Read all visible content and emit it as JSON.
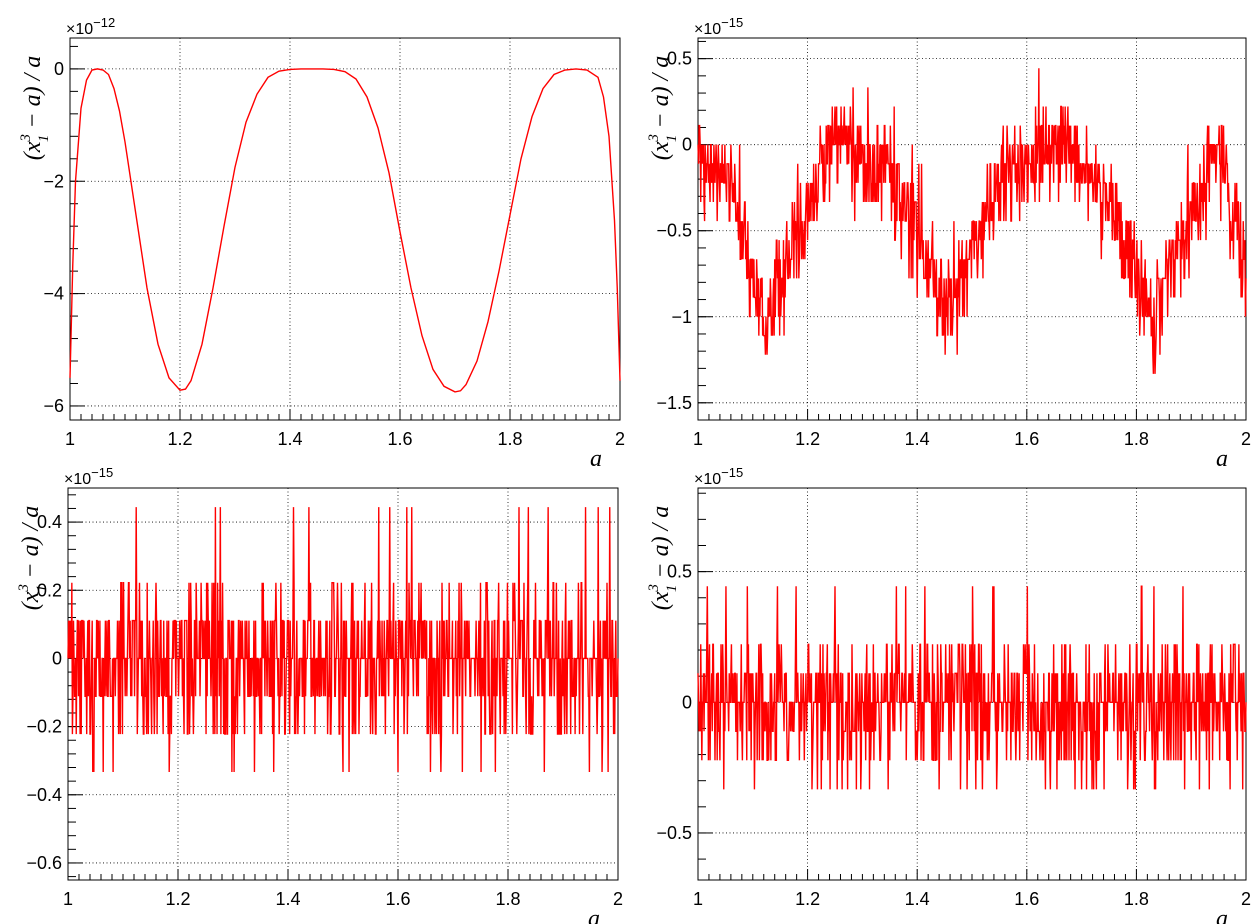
{
  "chart_data": [
    {
      "id": "top-left",
      "type": "line",
      "xlabel": "a",
      "ylabel": "(x_1^3 − a) / a",
      "exponent": "×10^−12",
      "xlim": [
        1,
        2
      ],
      "ylim": [
        -6.25,
        0.55
      ],
      "xticks": [
        1,
        1.2,
        1.4,
        1.6,
        1.8,
        2
      ],
      "xtick_labels": [
        "1",
        "1.2",
        "1.4",
        "1.6",
        "1.8",
        "2"
      ],
      "yticks": [
        -6,
        -4,
        -2,
        0
      ],
      "ytick_labels": [
        "−6",
        "−4",
        "−2",
        "0"
      ],
      "grid": true,
      "line_color": "#ff0000",
      "series": [
        {
          "x": [
            1.0,
            1.005,
            1.01,
            1.02,
            1.03,
            1.04,
            1.05,
            1.06,
            1.07,
            1.08,
            1.09,
            1.1,
            1.12,
            1.14,
            1.16,
            1.18,
            1.2,
            1.21,
            1.22,
            1.24,
            1.26,
            1.28,
            1.3,
            1.32,
            1.34,
            1.36,
            1.38,
            1.4,
            1.42,
            1.44,
            1.46,
            1.48,
            1.5,
            1.52,
            1.54,
            1.56,
            1.58,
            1.6,
            1.62,
            1.64,
            1.66,
            1.68,
            1.7,
            1.71,
            1.72,
            1.74,
            1.76,
            1.78,
            1.8,
            1.82,
            1.84,
            1.86,
            1.88,
            1.9,
            1.92,
            1.94,
            1.96,
            1.97,
            1.98,
            1.99,
            1.995,
            2.0
          ],
          "y": [
            -5.5,
            -3.5,
            -2.0,
            -0.7,
            -0.2,
            -0.02,
            0.0,
            -0.02,
            -0.1,
            -0.35,
            -0.75,
            -1.3,
            -2.6,
            -3.9,
            -4.9,
            -5.5,
            -5.72,
            -5.7,
            -5.55,
            -4.9,
            -3.9,
            -2.8,
            -1.75,
            -0.95,
            -0.45,
            -0.15,
            -0.04,
            -0.01,
            0.0,
            0.0,
            0.0,
            -0.01,
            -0.05,
            -0.18,
            -0.5,
            -1.05,
            -1.85,
            -2.9,
            -3.9,
            -4.75,
            -5.35,
            -5.65,
            -5.75,
            -5.73,
            -5.62,
            -5.2,
            -4.5,
            -3.6,
            -2.6,
            -1.6,
            -0.85,
            -0.35,
            -0.1,
            -0.02,
            0.0,
            -0.02,
            -0.15,
            -0.5,
            -1.2,
            -2.7,
            -3.9,
            -5.55
          ]
        }
      ]
    },
    {
      "id": "top-right",
      "type": "line",
      "xlabel": "a",
      "ylabel": "(x_1^3 − a) / a",
      "exponent": "×10^−15",
      "xlim": [
        1,
        2
      ],
      "ylim": [
        -1.6,
        0.62
      ],
      "xticks": [
        1,
        1.2,
        1.4,
        1.6,
        1.8,
        2
      ],
      "xtick_labels": [
        "1",
        "1.2",
        "1.4",
        "1.6",
        "1.8",
        "2"
      ],
      "yticks": [
        -1.5,
        -1,
        -0.5,
        0,
        0.5
      ],
      "ytick_labels": [
        "−1.5",
        "−1",
        "−0.5",
        "0",
        "0.5"
      ],
      "grid": true,
      "line_color": "#ff0000",
      "noise": {
        "kind": "quantized_noise_around_envelope",
        "quantum": 0.111,
        "samples": 1000,
        "envelope_x": [
          1.0,
          1.06,
          1.12,
          1.18,
          1.24,
          1.35,
          1.46,
          1.56,
          1.68,
          1.76,
          1.83,
          1.9,
          1.95,
          2.0
        ],
        "envelope_y": [
          -0.05,
          -0.25,
          -1.0,
          -0.55,
          0.0,
          -0.15,
          -0.95,
          -0.1,
          0.0,
          -0.4,
          -1.0,
          -0.4,
          0.0,
          -0.75
        ]
      }
    },
    {
      "id": "bottom-left",
      "type": "line",
      "xlabel": "a",
      "ylabel": "(x_1^3 − a) / a",
      "exponent": "×10^−15",
      "xlim": [
        1,
        2
      ],
      "ylim": [
        -0.65,
        0.5
      ],
      "xticks": [
        1,
        1.2,
        1.4,
        1.6,
        1.8,
        2
      ],
      "xtick_labels": [
        "1",
        "1.2",
        "1.4",
        "1.6",
        "1.8",
        "2"
      ],
      "yticks": [
        -0.6,
        -0.4,
        -0.2,
        0,
        0.2,
        0.4
      ],
      "ytick_labels": [
        "−0.6",
        "−0.4",
        "−0.2",
        "0",
        "0.2",
        "0.4"
      ],
      "grid": true,
      "line_color": "#ff0000",
      "noise": {
        "kind": "quantized_noise_around_envelope",
        "quantum": 0.111,
        "samples": 1000,
        "envelope_x": [
          1.0,
          2.0
        ],
        "envelope_y": [
          0.0,
          0.0
        ]
      }
    },
    {
      "id": "bottom-right",
      "type": "line",
      "xlabel": "a",
      "ylabel": "(x_1^3 − a) / a",
      "exponent": "×10^−15",
      "xlim": [
        1,
        2
      ],
      "ylim": [
        -0.68,
        0.82
      ],
      "xticks": [
        1,
        1.2,
        1.4,
        1.6,
        1.8,
        2
      ],
      "xtick_labels": [
        "1",
        "1.2",
        "1.4",
        "1.6",
        "1.8",
        "2"
      ],
      "yticks": [
        -0.5,
        0,
        0.5
      ],
      "ytick_labels": [
        "−0.5",
        "0",
        "0.5"
      ],
      "grid": true,
      "line_color": "#ff0000",
      "noise": {
        "kind": "quantized_noise_around_envelope",
        "quantum": 0.111,
        "samples": 1000,
        "envelope_x": [
          1.0,
          2.0
        ],
        "envelope_y": [
          0.0,
          0.0
        ]
      }
    }
  ]
}
